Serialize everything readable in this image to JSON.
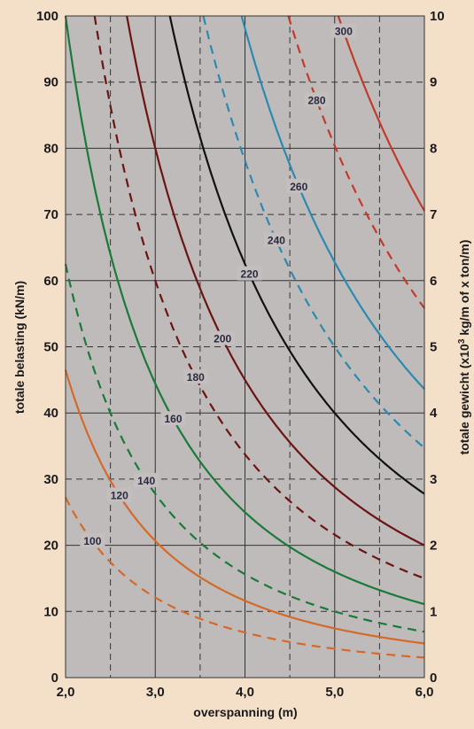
{
  "chart_data": {
    "type": "line",
    "xlabel": "overspanning (m)",
    "ylabel": "totale belasting (kN/m)",
    "ylabel_right_prefix": "totale gewicht (x10",
    "ylabel_right_sup": "3",
    "ylabel_right_suffix": " kg/m of x ton/m)",
    "xlim": [
      2.0,
      6.0
    ],
    "ylim": [
      0,
      100
    ],
    "x_ticks": [
      2.0,
      3.0,
      4.0,
      5.0,
      6.0
    ],
    "x_tick_labels": [
      "2,0",
      "3,0",
      "4,0",
      "5,0",
      "6,0"
    ],
    "y_ticks": [
      0,
      10,
      20,
      30,
      40,
      50,
      60,
      70,
      80,
      90,
      100
    ],
    "y_tick_labels": [
      "0",
      "10",
      "20",
      "30",
      "40",
      "50",
      "60",
      "70",
      "80",
      "90",
      "100"
    ],
    "y2_ticks": [
      0,
      1,
      2,
      3,
      4,
      5,
      6,
      7,
      8,
      9,
      10
    ],
    "y2_tick_labels": [
      "0",
      "1",
      "2",
      "3",
      "4",
      "5",
      "6",
      "7",
      "8",
      "9",
      "10"
    ],
    "grid": true,
    "background": "#c0bbbb",
    "series": [
      {
        "name": "100",
        "color": "#d4692a",
        "dashed": true,
        "k": 109,
        "label_x": 2.3
      },
      {
        "name": "120",
        "color": "#d4692a",
        "dashed": false,
        "k": 186,
        "label_x": 2.6
      },
      {
        "name": "140",
        "color": "#1a7a3a",
        "dashed": true,
        "k": 250,
        "label_x": 2.9
      },
      {
        "name": "160",
        "color": "#1a7a3a",
        "dashed": false,
        "k": 400,
        "label_x": 3.2
      },
      {
        "name": "180",
        "color": "#6b1414",
        "dashed": true,
        "k": 540,
        "label_x": 3.45
      },
      {
        "name": "200",
        "color": "#6b1414",
        "dashed": false,
        "k": 720,
        "label_x": 3.75
      },
      {
        "name": "220",
        "color": "#111111",
        "dashed": false,
        "k": 1000,
        "label_x": 4.05
      },
      {
        "name": "240",
        "color": "#2a8ab0",
        "dashed": true,
        "k": 1250,
        "label_x": 4.35
      },
      {
        "name": "260",
        "color": "#2a8ab0",
        "dashed": false,
        "k": 1570,
        "label_x": 4.6
      },
      {
        "name": "280",
        "color": "#c23a2a",
        "dashed": true,
        "k": 2010,
        "label_x": 4.8
      },
      {
        "name": "300",
        "color": "#c23a2a",
        "dashed": false,
        "k": 2540,
        "label_x": 5.1
      }
    ]
  }
}
